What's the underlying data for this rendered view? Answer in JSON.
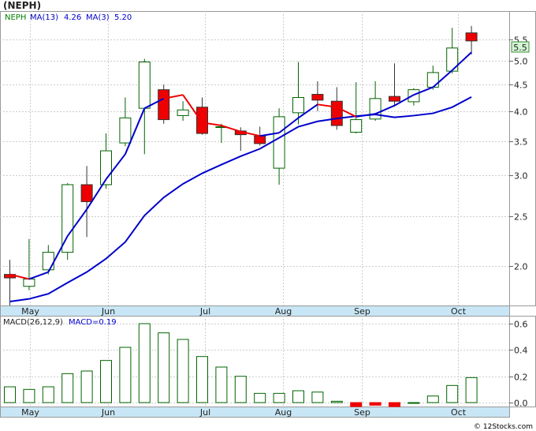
{
  "header": {
    "ticker_title": "(NEPH)",
    "legend": [
      {
        "text": "NEPH",
        "color": "#008000"
      },
      {
        "text": "MA(13)",
        "color": "#0000cc"
      },
      {
        "text": "4.26",
        "color": "#0000cc"
      },
      {
        "text": "MA(3)",
        "color": "#0000cc"
      },
      {
        "text": "5.20",
        "color": "#0000cc"
      }
    ],
    "last_price_tag": "5.5"
  },
  "macd_header": {
    "legend": [
      {
        "text": "MACD(26,12,9)",
        "color": "#222222"
      },
      {
        "text": "MACD=0.19",
        "color": "#0000cc"
      }
    ]
  },
  "watermark": "© 12Stocks.com",
  "colors": {
    "up": "#006400",
    "down": "#ee0000",
    "ma13": "#0000cc",
    "ma3_up": "#0000cc",
    "ma3_down": "#ee0000",
    "grid": "#cccccc",
    "axis_bg": "#c8e6f5",
    "macd_bar": "#006400"
  },
  "chart_data": [
    {
      "type": "candlestick",
      "title": "(NEPH)",
      "scale": "log",
      "ylim": [
        1.68,
        6.25
      ],
      "yticks": [
        2.0,
        2.5,
        3.0,
        3.5,
        4.0,
        4.5,
        5.0,
        5.5
      ],
      "x_month_labels": [
        {
          "label": "May",
          "index": 1.05
        },
        {
          "label": "Jun",
          "index": 5.1
        },
        {
          "label": "Jul",
          "index": 10.15
        },
        {
          "label": "Aug",
          "index": 14.2
        },
        {
          "label": "Sep",
          "index": 18.3
        },
        {
          "label": "Oct",
          "index": 23.3
        }
      ],
      "candles": [
        {
          "o": 1.93,
          "h": 2.06,
          "l": 1.68,
          "c": 1.9
        },
        {
          "o": 1.83,
          "h": 2.26,
          "l": 1.8,
          "c": 1.89
        },
        {
          "o": 1.97,
          "h": 2.2,
          "l": 1.93,
          "c": 2.13
        },
        {
          "o": 2.13,
          "h": 2.9,
          "l": 2.06,
          "c": 2.88
        },
        {
          "o": 2.88,
          "h": 3.13,
          "l": 2.28,
          "c": 2.67
        },
        {
          "o": 2.88,
          "h": 3.62,
          "l": 2.83,
          "c": 3.35
        },
        {
          "o": 3.47,
          "h": 4.25,
          "l": 3.42,
          "c": 3.88
        },
        {
          "o": 4.05,
          "h": 5.05,
          "l": 3.3,
          "c": 4.98
        },
        {
          "o": 4.4,
          "h": 4.5,
          "l": 3.78,
          "c": 3.85
        },
        {
          "o": 3.92,
          "h": 4.18,
          "l": 3.83,
          "c": 4.02
        },
        {
          "o": 4.07,
          "h": 4.25,
          "l": 3.6,
          "c": 3.62
        },
        {
          "o": 3.73,
          "h": 3.78,
          "l": 3.47,
          "c": 3.73
        },
        {
          "o": 3.66,
          "h": 3.72,
          "l": 3.35,
          "c": 3.6
        },
        {
          "o": 3.58,
          "h": 3.73,
          "l": 3.43,
          "c": 3.46
        },
        {
          "o": 3.1,
          "h": 4.05,
          "l": 2.88,
          "c": 3.9
        },
        {
          "o": 3.97,
          "h": 4.98,
          "l": 3.77,
          "c": 4.25
        },
        {
          "o": 4.31,
          "h": 4.57,
          "l": 4.0,
          "c": 4.2
        },
        {
          "o": 4.18,
          "h": 4.45,
          "l": 3.68,
          "c": 3.75
        },
        {
          "o": 3.64,
          "h": 4.55,
          "l": 3.62,
          "c": 3.85
        },
        {
          "o": 3.86,
          "h": 4.57,
          "l": 3.83,
          "c": 4.23
        },
        {
          "o": 4.27,
          "h": 4.95,
          "l": 4.08,
          "c": 4.18
        },
        {
          "o": 4.17,
          "h": 4.43,
          "l": 4.1,
          "c": 4.4
        },
        {
          "o": 4.45,
          "h": 4.9,
          "l": 4.4,
          "c": 4.75
        },
        {
          "o": 4.78,
          "h": 5.8,
          "l": 4.73,
          "c": 5.3
        },
        {
          "o": 5.67,
          "h": 5.85,
          "l": 5.15,
          "c": 5.47
        }
      ],
      "ma13": [
        1.71,
        1.73,
        1.77,
        1.86,
        1.95,
        2.07,
        2.23,
        2.51,
        2.72,
        2.89,
        3.03,
        3.15,
        3.27,
        3.38,
        3.55,
        3.73,
        3.82,
        3.87,
        3.91,
        3.94,
        3.89,
        3.92,
        3.96,
        4.07,
        4.26
      ],
      "ma3": [
        1.93,
        1.89,
        1.95,
        2.29,
        2.58,
        2.95,
        3.3,
        4.05,
        4.23,
        4.3,
        3.8,
        3.75,
        3.65,
        3.58,
        3.63,
        3.88,
        4.12,
        4.07,
        3.9,
        3.95,
        4.1,
        4.3,
        4.45,
        4.8,
        5.2
      ],
      "ma3_colors": [
        "down",
        "down",
        "up",
        "up",
        "up",
        "up",
        "up",
        "up",
        "up",
        "down",
        "down",
        "down",
        "down",
        "down",
        "up",
        "up",
        "up",
        "down",
        "down",
        "up",
        "up",
        "up",
        "up",
        "up",
        "up"
      ]
    },
    {
      "type": "bar",
      "title": "MACD(26,12,9)",
      "ylim": [
        -0.03,
        0.66
      ],
      "yticks": [
        0.0,
        0.2,
        0.4,
        0.6
      ],
      "values": [
        0.12,
        0.1,
        0.12,
        0.22,
        0.24,
        0.32,
        0.42,
        0.6,
        0.53,
        0.48,
        0.35,
        0.27,
        0.2,
        0.07,
        0.07,
        0.09,
        0.08,
        0.01,
        -0.03,
        -0.02,
        -0.03,
        0.0,
        0.05,
        0.13,
        0.19
      ]
    }
  ]
}
